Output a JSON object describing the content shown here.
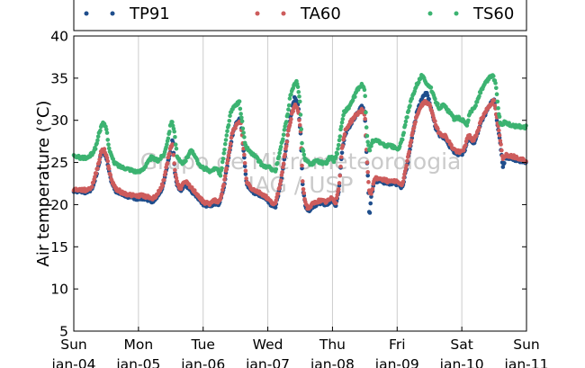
{
  "chart_data": {
    "type": "scatter",
    "title": "",
    "xlabel": "",
    "ylabel": "Air temperature (°C)",
    "ylim": [
      5,
      40
    ],
    "yticks": [
      5,
      10,
      15,
      20,
      25,
      30,
      35,
      40
    ],
    "xlim_days": [
      0,
      7
    ],
    "x_unit": "days from Sun jan-04",
    "xticks": [
      {
        "day": 0,
        "weekday": "Sun",
        "date": "jan-04"
      },
      {
        "day": 1,
        "weekday": "Mon",
        "date": "jan-05"
      },
      {
        "day": 2,
        "weekday": "Tue",
        "date": "jan-06"
      },
      {
        "day": 3,
        "weekday": "Wed",
        "date": "jan-07"
      },
      {
        "day": 4,
        "weekday": "Thu",
        "date": "jan-08"
      },
      {
        "day": 5,
        "weekday": "Fri",
        "date": "jan-09"
      },
      {
        "day": 6,
        "weekday": "Sat",
        "date": "jan-10"
      },
      {
        "day": 7,
        "weekday": "Sun",
        "date": "jan-11"
      }
    ],
    "grid": "vertical",
    "legend_position": "top",
    "watermark": [
      "Grupo de Micrometeorologia",
      "IAG / USP"
    ],
    "series": [
      {
        "name": "TP91",
        "color": "#1f4e8c",
        "points": [
          [
            0.0,
            21.6
          ],
          [
            0.2,
            21.5
          ],
          [
            0.28,
            21.8
          ],
          [
            0.36,
            23.8
          ],
          [
            0.42,
            25.9
          ],
          [
            0.47,
            26.3
          ],
          [
            0.52,
            25.0
          ],
          [
            0.58,
            22.6
          ],
          [
            0.65,
            21.6
          ],
          [
            0.75,
            21.1
          ],
          [
            0.85,
            20.9
          ],
          [
            0.95,
            20.7
          ],
          [
            1.05,
            20.8
          ],
          [
            1.15,
            20.6
          ],
          [
            1.22,
            20.4
          ],
          [
            1.3,
            21.0
          ],
          [
            1.38,
            22.2
          ],
          [
            1.45,
            24.8
          ],
          [
            1.5,
            26.6
          ],
          [
            1.53,
            27.8
          ],
          [
            1.56,
            24.0
          ],
          [
            1.6,
            22.2
          ],
          [
            1.65,
            21.6
          ],
          [
            1.72,
            22.5
          ],
          [
            1.8,
            21.8
          ],
          [
            1.9,
            21.0
          ],
          [
            2.0,
            20.0
          ],
          [
            2.1,
            19.8
          ],
          [
            2.18,
            20.2
          ],
          [
            2.25,
            20.0
          ],
          [
            2.32,
            22.0
          ],
          [
            2.38,
            25.0
          ],
          [
            2.45,
            28.2
          ],
          [
            2.52,
            29.8
          ],
          [
            2.58,
            30.2
          ],
          [
            2.63,
            26.0
          ],
          [
            2.67,
            22.5
          ],
          [
            2.75,
            21.6
          ],
          [
            2.85,
            21.2
          ],
          [
            2.95,
            20.8
          ],
          [
            3.05,
            20.0
          ],
          [
            3.12,
            19.8
          ],
          [
            3.2,
            22.5
          ],
          [
            3.27,
            26.0
          ],
          [
            3.33,
            29.5
          ],
          [
            3.38,
            31.6
          ],
          [
            3.42,
            32.8
          ],
          [
            3.47,
            31.8
          ],
          [
            3.51,
            28.0
          ],
          [
            3.54,
            22.0
          ],
          [
            3.58,
            20.0
          ],
          [
            3.62,
            19.2
          ],
          [
            3.7,
            19.8
          ],
          [
            3.8,
            20.2
          ],
          [
            3.9,
            20.0
          ],
          [
            4.0,
            20.5
          ],
          [
            4.05,
            19.9
          ],
          [
            4.1,
            21.8
          ],
          [
            4.15,
            26.5
          ],
          [
            4.2,
            28.5
          ],
          [
            4.28,
            29.5
          ],
          [
            4.36,
            30.5
          ],
          [
            4.45,
            31.6
          ],
          [
            4.5,
            31.0
          ],
          [
            4.52,
            27.0
          ],
          [
            4.55,
            23.0
          ],
          [
            4.57,
            18.4
          ],
          [
            4.6,
            21.0
          ],
          [
            4.65,
            22.8
          ],
          [
            4.75,
            22.8
          ],
          [
            4.85,
            22.5
          ],
          [
            4.95,
            22.6
          ],
          [
            5.03,
            22.3
          ],
          [
            5.08,
            22.0
          ],
          [
            5.15,
            24.5
          ],
          [
            5.22,
            27.5
          ],
          [
            5.3,
            30.8
          ],
          [
            5.38,
            32.5
          ],
          [
            5.45,
            33.3
          ],
          [
            5.5,
            32.2
          ],
          [
            5.55,
            30.5
          ],
          [
            5.6,
            29.0
          ],
          [
            5.65,
            28.2
          ],
          [
            5.75,
            27.8
          ],
          [
            5.85,
            26.5
          ],
          [
            5.92,
            26.0
          ],
          [
            6.0,
            26.0
          ],
          [
            6.05,
            26.5
          ],
          [
            6.1,
            28.0
          ],
          [
            6.18,
            27.2
          ],
          [
            6.25,
            28.5
          ],
          [
            6.3,
            29.8
          ],
          [
            6.38,
            31.0
          ],
          [
            6.45,
            32.0
          ],
          [
            6.5,
            32.6
          ],
          [
            6.55,
            29.5
          ],
          [
            6.6,
            27.0
          ],
          [
            6.63,
            24.5
          ],
          [
            6.68,
            25.6
          ],
          [
            6.75,
            25.5
          ],
          [
            6.85,
            25.3
          ],
          [
            7.0,
            25.0
          ]
        ]
      },
      {
        "name": "TA60",
        "color": "#cd5c5c",
        "points": [
          [
            0.0,
            21.8
          ],
          [
            0.2,
            21.7
          ],
          [
            0.28,
            22.1
          ],
          [
            0.36,
            24.2
          ],
          [
            0.42,
            26.2
          ],
          [
            0.47,
            26.6
          ],
          [
            0.52,
            25.3
          ],
          [
            0.58,
            22.9
          ],
          [
            0.65,
            21.9
          ],
          [
            0.75,
            21.4
          ],
          [
            0.85,
            21.2
          ],
          [
            0.95,
            21.0
          ],
          [
            1.05,
            21.1
          ],
          [
            1.15,
            20.9
          ],
          [
            1.22,
            20.7
          ],
          [
            1.3,
            21.3
          ],
          [
            1.38,
            22.5
          ],
          [
            1.45,
            25.1
          ],
          [
            1.5,
            26.9
          ],
          [
            1.53,
            27.3
          ],
          [
            1.56,
            24.3
          ],
          [
            1.6,
            22.5
          ],
          [
            1.65,
            21.9
          ],
          [
            1.72,
            22.8
          ],
          [
            1.8,
            22.1
          ],
          [
            1.9,
            21.3
          ],
          [
            2.0,
            20.3
          ],
          [
            2.1,
            20.1
          ],
          [
            2.18,
            20.5
          ],
          [
            2.25,
            20.3
          ],
          [
            2.32,
            22.3
          ],
          [
            2.38,
            25.3
          ],
          [
            2.45,
            28.5
          ],
          [
            2.52,
            29.5
          ],
          [
            2.58,
            29.8
          ],
          [
            2.63,
            26.3
          ],
          [
            2.67,
            22.8
          ],
          [
            2.75,
            21.9
          ],
          [
            2.85,
            21.5
          ],
          [
            2.95,
            21.1
          ],
          [
            3.05,
            20.3
          ],
          [
            3.12,
            20.1
          ],
          [
            3.2,
            22.8
          ],
          [
            3.27,
            26.3
          ],
          [
            3.33,
            29.2
          ],
          [
            3.38,
            31.0
          ],
          [
            3.42,
            31.8
          ],
          [
            3.47,
            31.2
          ],
          [
            3.51,
            28.3
          ],
          [
            3.54,
            22.3
          ],
          [
            3.58,
            20.3
          ],
          [
            3.62,
            19.5
          ],
          [
            3.7,
            20.1
          ],
          [
            3.8,
            20.5
          ],
          [
            3.9,
            20.3
          ],
          [
            4.0,
            20.8
          ],
          [
            4.05,
            20.2
          ],
          [
            4.1,
            22.1
          ],
          [
            4.15,
            26.8
          ],
          [
            4.2,
            28.8
          ],
          [
            4.28,
            29.8
          ],
          [
            4.36,
            30.6
          ],
          [
            4.45,
            31.2
          ],
          [
            4.5,
            30.8
          ],
          [
            4.52,
            27.3
          ],
          [
            4.55,
            23.3
          ],
          [
            4.57,
            21.5
          ],
          [
            4.6,
            21.3
          ],
          [
            4.65,
            23.1
          ],
          [
            4.75,
            23.1
          ],
          [
            4.85,
            22.8
          ],
          [
            4.95,
            22.9
          ],
          [
            5.03,
            22.6
          ],
          [
            5.08,
            22.3
          ],
          [
            5.15,
            24.8
          ],
          [
            5.22,
            27.8
          ],
          [
            5.3,
            30.5
          ],
          [
            5.38,
            31.8
          ],
          [
            5.45,
            32.3
          ],
          [
            5.5,
            31.8
          ],
          [
            5.55,
            30.8
          ],
          [
            5.6,
            29.3
          ],
          [
            5.65,
            28.5
          ],
          [
            5.75,
            28.1
          ],
          [
            5.85,
            26.8
          ],
          [
            5.92,
            26.3
          ],
          [
            6.0,
            26.3
          ],
          [
            6.05,
            26.8
          ],
          [
            6.1,
            28.3
          ],
          [
            6.18,
            27.5
          ],
          [
            6.25,
            28.8
          ],
          [
            6.3,
            30.1
          ],
          [
            6.38,
            31.2
          ],
          [
            6.45,
            32.0
          ],
          [
            6.5,
            32.3
          ],
          [
            6.55,
            29.8
          ],
          [
            6.6,
            27.3
          ],
          [
            6.63,
            25.5
          ],
          [
            6.68,
            25.9
          ],
          [
            6.75,
            25.8
          ],
          [
            6.85,
            25.6
          ],
          [
            7.0,
            25.2
          ]
        ]
      },
      {
        "name": "TS60",
        "color": "#3cb371",
        "points": [
          [
            0.0,
            25.7
          ],
          [
            0.1,
            25.6
          ],
          [
            0.2,
            25.5
          ],
          [
            0.28,
            26.0
          ],
          [
            0.34,
            26.8
          ],
          [
            0.4,
            28.8
          ],
          [
            0.45,
            29.6
          ],
          [
            0.5,
            29.2
          ],
          [
            0.55,
            26.5
          ],
          [
            0.62,
            25.0
          ],
          [
            0.72,
            24.5
          ],
          [
            0.82,
            24.3
          ],
          [
            0.9,
            24.1
          ],
          [
            1.0,
            23.8
          ],
          [
            1.1,
            24.5
          ],
          [
            1.2,
            25.6
          ],
          [
            1.3,
            25.2
          ],
          [
            1.4,
            26.0
          ],
          [
            1.46,
            28.0
          ],
          [
            1.51,
            30.0
          ],
          [
            1.55,
            29.0
          ],
          [
            1.6,
            25.5
          ],
          [
            1.68,
            24.8
          ],
          [
            1.75,
            25.5
          ],
          [
            1.8,
            26.5
          ],
          [
            1.88,
            25.8
          ],
          [
            1.95,
            24.5
          ],
          [
            2.05,
            24.2
          ],
          [
            2.12,
            23.8
          ],
          [
            2.2,
            24.5
          ],
          [
            2.27,
            23.5
          ],
          [
            2.33,
            26.5
          ],
          [
            2.38,
            29.0
          ],
          [
            2.43,
            31.0
          ],
          [
            2.5,
            31.8
          ],
          [
            2.56,
            32.2
          ],
          [
            2.6,
            30.0
          ],
          [
            2.65,
            27.0
          ],
          [
            2.72,
            26.3
          ],
          [
            2.82,
            25.6
          ],
          [
            2.92,
            24.6
          ],
          [
            3.02,
            24.4
          ],
          [
            3.12,
            24.0
          ],
          [
            3.18,
            26.0
          ],
          [
            3.25,
            28.5
          ],
          [
            3.3,
            30.5
          ],
          [
            3.35,
            33.0
          ],
          [
            3.4,
            34.0
          ],
          [
            3.45,
            34.6
          ],
          [
            3.5,
            32.0
          ],
          [
            3.53,
            27.0
          ],
          [
            3.57,
            25.5
          ],
          [
            3.62,
            25.0
          ],
          [
            3.68,
            24.8
          ],
          [
            3.75,
            25.3
          ],
          [
            3.82,
            25.0
          ],
          [
            3.9,
            24.9
          ],
          [
            3.97,
            25.8
          ],
          [
            4.02,
            25.2
          ],
          [
            4.08,
            26.3
          ],
          [
            4.13,
            29.0
          ],
          [
            4.18,
            31.0
          ],
          [
            4.25,
            31.5
          ],
          [
            4.32,
            32.5
          ],
          [
            4.4,
            33.8
          ],
          [
            4.46,
            34.2
          ],
          [
            4.5,
            33.5
          ],
          [
            4.53,
            28.5
          ],
          [
            4.57,
            26.3
          ],
          [
            4.62,
            27.5
          ],
          [
            4.7,
            27.6
          ],
          [
            4.8,
            27.0
          ],
          [
            4.88,
            27.0
          ],
          [
            4.95,
            26.8
          ],
          [
            5.02,
            26.5
          ],
          [
            5.08,
            27.8
          ],
          [
            5.14,
            30.0
          ],
          [
            5.22,
            32.5
          ],
          [
            5.3,
            34.2
          ],
          [
            5.38,
            35.3
          ],
          [
            5.45,
            34.5
          ],
          [
            5.52,
            33.8
          ],
          [
            5.58,
            32.5
          ],
          [
            5.65,
            31.5
          ],
          [
            5.72,
            31.8
          ],
          [
            5.8,
            31.0
          ],
          [
            5.88,
            30.2
          ],
          [
            5.95,
            30.3
          ],
          [
            6.02,
            30.0
          ],
          [
            6.08,
            29.5
          ],
          [
            6.13,
            31.0
          ],
          [
            6.2,
            31.5
          ],
          [
            6.28,
            33.2
          ],
          [
            6.35,
            34.2
          ],
          [
            6.42,
            35.0
          ],
          [
            6.48,
            35.4
          ],
          [
            6.53,
            34.0
          ],
          [
            6.57,
            31.0
          ],
          [
            6.6,
            29.5
          ],
          [
            6.68,
            29.8
          ],
          [
            6.75,
            29.4
          ],
          [
            6.85,
            29.3
          ],
          [
            7.0,
            29.2
          ]
        ]
      }
    ]
  }
}
